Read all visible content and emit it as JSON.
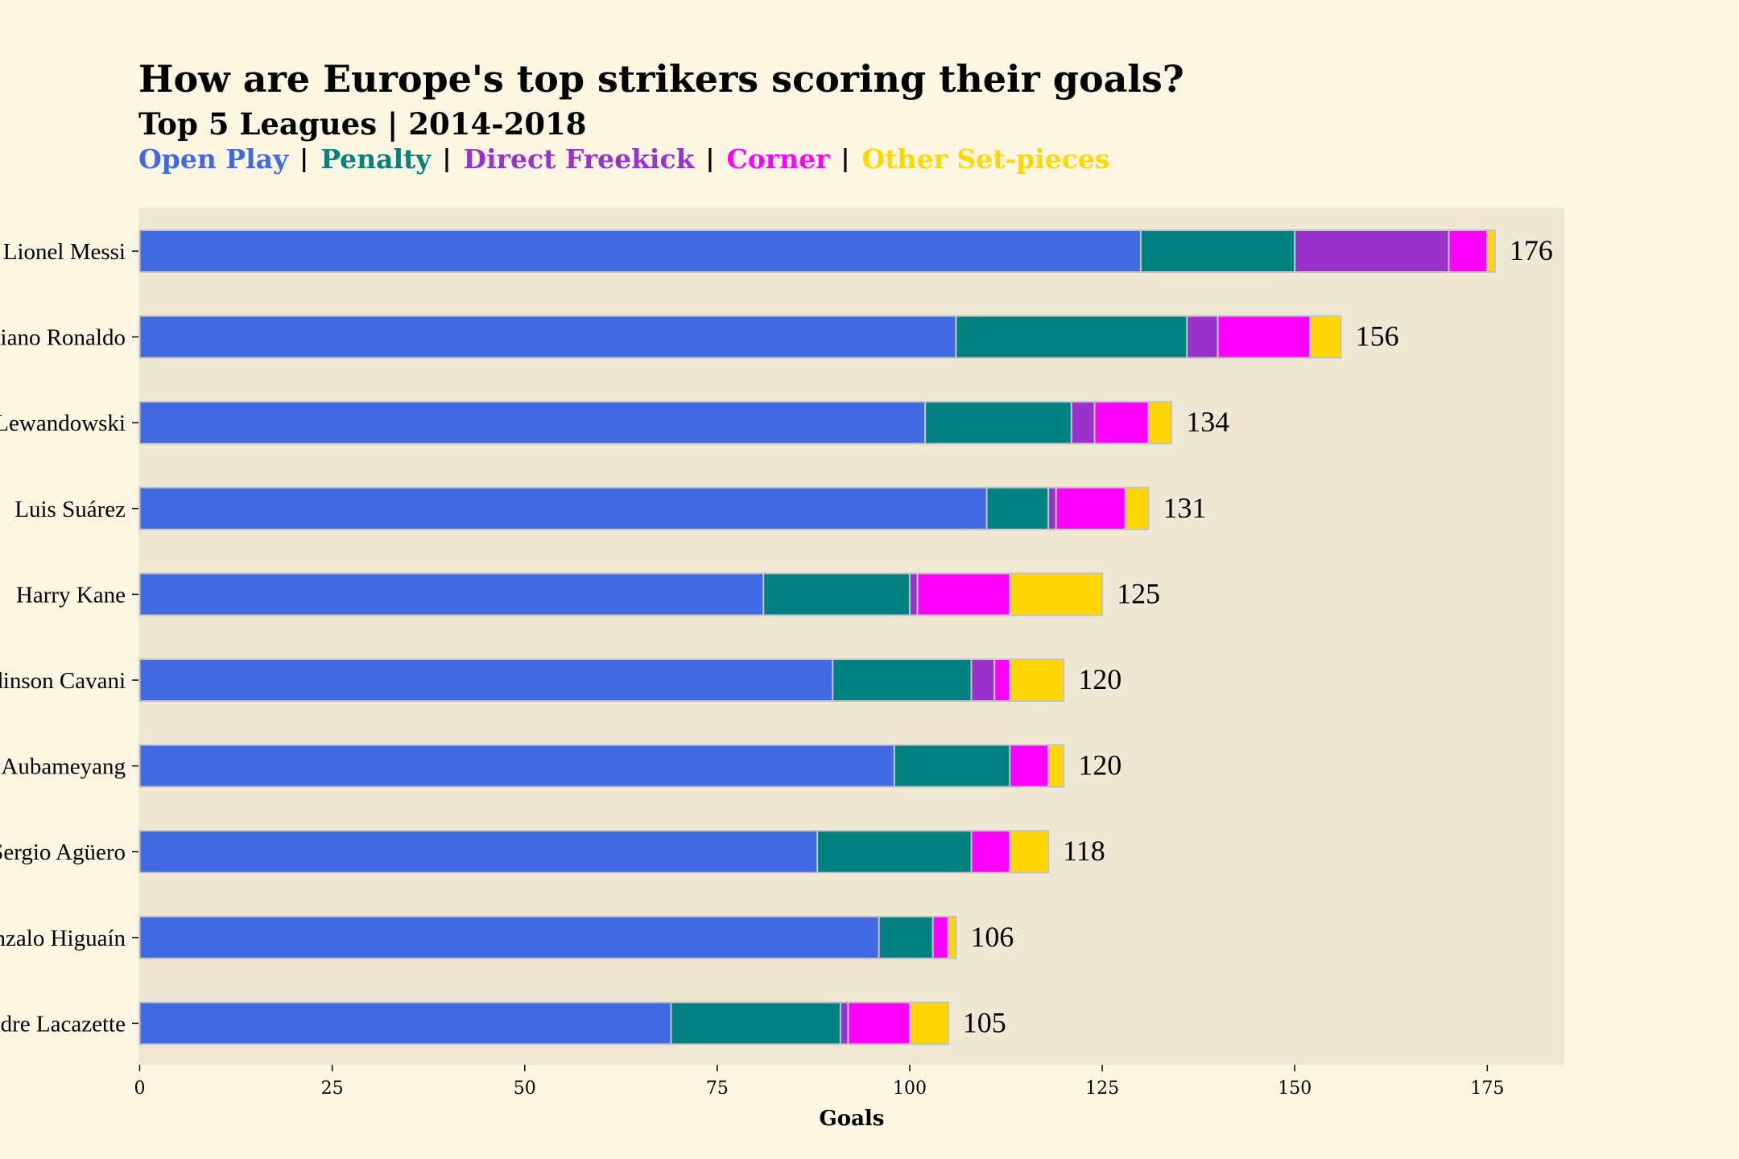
{
  "chart_data": {
    "type": "bar",
    "orientation": "horizontal",
    "stacked": true,
    "title": "How are Europe's top strikers scoring their goals?",
    "subtitle": "Top 5 Leagues | 2014-2018",
    "xlabel": "Goals",
    "ylabel": "",
    "xlim": [
      0,
      185
    ],
    "xticks": [
      0,
      25,
      50,
      75,
      100,
      125,
      150,
      175
    ],
    "legend_separator": "|",
    "legend_position": "top-left",
    "grid": false,
    "categories": [
      "Lionel Messi",
      "Cristiano Ronaldo",
      "Robert Lewandowski",
      "Luis Suárez",
      "Harry Kane",
      "Edinson Cavani",
      "Pierre-Emerick Aubameyang",
      "Sergio Agüero",
      "Gonzalo Higuaín",
      "Alexandre Lacazette"
    ],
    "totals": [
      176,
      156,
      134,
      131,
      125,
      120,
      120,
      118,
      106,
      105
    ],
    "series": [
      {
        "name": "Open Play",
        "color": "#4169e1",
        "values": [
          130,
          106,
          102,
          110,
          81,
          90,
          98,
          88,
          96,
          69
        ]
      },
      {
        "name": "Penalty",
        "color": "#008080",
        "values": [
          20,
          30,
          19,
          8,
          19,
          18,
          15,
          20,
          7,
          22
        ]
      },
      {
        "name": "Direct Freekick",
        "color": "#9932cc",
        "values": [
          20,
          4,
          3,
          1,
          1,
          3,
          0,
          0,
          0,
          1
        ]
      },
      {
        "name": "Corner",
        "color": "#ff00ff",
        "values": [
          5,
          12,
          7,
          9,
          12,
          2,
          5,
          5,
          2,
          8
        ]
      },
      {
        "name": "Other Set-pieces",
        "color": "#ffd700",
        "values": [
          1,
          4,
          3,
          3,
          12,
          7,
          2,
          5,
          1,
          5
        ]
      }
    ]
  }
}
